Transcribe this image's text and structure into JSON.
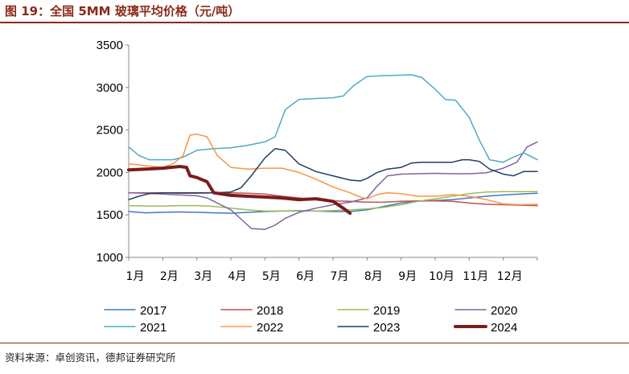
{
  "header": {
    "title": "图 19：全国 5MM 玻璃平均价格（元/吨）"
  },
  "footer": {
    "source": "资料来源：卓创资讯，德邦证券研究所"
  },
  "chart_data": {
    "type": "line",
    "title": "图 19：全国 5MM 玻璃平均价格（元/吨）",
    "xlabel": "",
    "ylabel": "",
    "ylim": [
      1000,
      3500
    ],
    "y_ticks": [
      1000,
      1500,
      2000,
      2500,
      3000,
      3500
    ],
    "x_ticks": [
      "1月",
      "2月",
      "3月",
      "4月",
      "5月",
      "6月",
      "7月",
      "8月",
      "9月",
      "10月",
      "11月",
      "12月"
    ],
    "xlim": [
      1,
      13
    ],
    "grid": false,
    "legend_position": "bottom",
    "series": [
      {
        "name": "2017",
        "color": "#3d7bbd",
        "width": 1.5,
        "points": [
          [
            1,
            1540
          ],
          [
            1.5,
            1525
          ],
          [
            2,
            1530
          ],
          [
            2.5,
            1535
          ],
          [
            3,
            1530
          ],
          [
            3.5,
            1525
          ],
          [
            4,
            1520
          ],
          [
            4.5,
            1530
          ],
          [
            5,
            1540
          ],
          [
            5.5,
            1545
          ],
          [
            6,
            1550
          ],
          [
            6.5,
            1545
          ],
          [
            7,
            1540
          ],
          [
            7.5,
            1540
          ],
          [
            8,
            1560
          ],
          [
            8.5,
            1600
          ],
          [
            9,
            1640
          ],
          [
            9.5,
            1660
          ],
          [
            10,
            1670
          ],
          [
            10.5,
            1680
          ],
          [
            11,
            1700
          ],
          [
            11.5,
            1720
          ],
          [
            12,
            1735
          ],
          [
            12.5,
            1745
          ],
          [
            13,
            1755
          ]
        ]
      },
      {
        "name": "2018",
        "color": "#c0504d",
        "width": 1.5,
        "points": [
          [
            1,
            1760
          ],
          [
            1.5,
            1760
          ],
          [
            2,
            1760
          ],
          [
            2.5,
            1755
          ],
          [
            3,
            1755
          ],
          [
            3.5,
            1760
          ],
          [
            4,
            1760
          ],
          [
            4.5,
            1755
          ],
          [
            5,
            1745
          ],
          [
            5.5,
            1720
          ],
          [
            6,
            1700
          ],
          [
            6.5,
            1680
          ],
          [
            7,
            1665
          ],
          [
            7.5,
            1660
          ],
          [
            8,
            1650
          ],
          [
            8.5,
            1650
          ],
          [
            9,
            1660
          ],
          [
            9.5,
            1665
          ],
          [
            10,
            1665
          ],
          [
            10.5,
            1660
          ],
          [
            11,
            1640
          ],
          [
            11.5,
            1625
          ],
          [
            12,
            1620
          ],
          [
            12.5,
            1615
          ],
          [
            13,
            1610
          ]
        ]
      },
      {
        "name": "2019",
        "color": "#9bbb59",
        "width": 1.5,
        "points": [
          [
            1,
            1610
          ],
          [
            1.5,
            1605
          ],
          [
            2,
            1605
          ],
          [
            2.5,
            1610
          ],
          [
            3,
            1610
          ],
          [
            3.5,
            1600
          ],
          [
            4,
            1580
          ],
          [
            4.5,
            1560
          ],
          [
            5,
            1545
          ],
          [
            5.5,
            1545
          ],
          [
            6,
            1545
          ],
          [
            6.5,
            1545
          ],
          [
            7,
            1550
          ],
          [
            7.5,
            1560
          ],
          [
            8,
            1570
          ],
          [
            8.5,
            1590
          ],
          [
            9,
            1620
          ],
          [
            9.5,
            1660
          ],
          [
            10,
            1690
          ],
          [
            10.5,
            1720
          ],
          [
            11,
            1750
          ],
          [
            11.5,
            1770
          ],
          [
            12,
            1775
          ],
          [
            12.5,
            1775
          ],
          [
            13,
            1775
          ]
        ]
      },
      {
        "name": "2020",
        "color": "#8064a2",
        "width": 1.5,
        "points": [
          [
            1,
            1760
          ],
          [
            1.5,
            1755
          ],
          [
            2,
            1745
          ],
          [
            2.5,
            1735
          ],
          [
            3,
            1725
          ],
          [
            3.3,
            1700
          ],
          [
            3.6,
            1640
          ],
          [
            4,
            1560
          ],
          [
            4.3,
            1450
          ],
          [
            4.6,
            1340
          ],
          [
            5,
            1330
          ],
          [
            5.3,
            1380
          ],
          [
            5.6,
            1460
          ],
          [
            6,
            1530
          ],
          [
            6.5,
            1580
          ],
          [
            7,
            1620
          ],
          [
            7.5,
            1650
          ],
          [
            8,
            1700
          ],
          [
            8.3,
            1840
          ],
          [
            8.6,
            1960
          ],
          [
            9,
            1980
          ],
          [
            9.5,
            1985
          ],
          [
            10,
            1990
          ],
          [
            10.5,
            1985
          ],
          [
            11,
            1985
          ],
          [
            11.5,
            1995
          ],
          [
            12,
            2050
          ],
          [
            12.4,
            2120
          ],
          [
            12.7,
            2300
          ],
          [
            13,
            2360
          ]
        ]
      },
      {
        "name": "2021",
        "color": "#4bacc6",
        "width": 1.5,
        "points": [
          [
            1,
            2300
          ],
          [
            1.3,
            2200
          ],
          [
            1.6,
            2150
          ],
          [
            2,
            2150
          ],
          [
            2.3,
            2150
          ],
          [
            2.6,
            2180
          ],
          [
            3,
            2260
          ],
          [
            3.5,
            2280
          ],
          [
            4,
            2290
          ],
          [
            4.5,
            2320
          ],
          [
            5,
            2360
          ],
          [
            5.3,
            2420
          ],
          [
            5.6,
            2740
          ],
          [
            6,
            2860
          ],
          [
            6.5,
            2870
          ],
          [
            7,
            2880
          ],
          [
            7.3,
            2900
          ],
          [
            7.6,
            3020
          ],
          [
            8,
            3130
          ],
          [
            8.5,
            3140
          ],
          [
            9,
            3145
          ],
          [
            9.3,
            3150
          ],
          [
            9.6,
            3120
          ],
          [
            10,
            2980
          ],
          [
            10.3,
            2860
          ],
          [
            10.6,
            2850
          ],
          [
            11,
            2650
          ],
          [
            11.3,
            2380
          ],
          [
            11.6,
            2150
          ],
          [
            12,
            2120
          ],
          [
            12.3,
            2180
          ],
          [
            12.6,
            2230
          ],
          [
            13,
            2150
          ]
        ]
      },
      {
        "name": "2022",
        "color": "#f79646",
        "width": 1.5,
        "points": [
          [
            1,
            2100
          ],
          [
            1.5,
            2080
          ],
          [
            2,
            2060
          ],
          [
            2.3,
            2100
          ],
          [
            2.6,
            2200
          ],
          [
            2.8,
            2440
          ],
          [
            3,
            2450
          ],
          [
            3.3,
            2420
          ],
          [
            3.6,
            2200
          ],
          [
            4,
            2060
          ],
          [
            4.5,
            2040
          ],
          [
            5,
            2050
          ],
          [
            5.5,
            2050
          ],
          [
            6,
            2000
          ],
          [
            6.5,
            1920
          ],
          [
            7,
            1830
          ],
          [
            7.5,
            1760
          ],
          [
            7.8,
            1710
          ],
          [
            8,
            1690
          ],
          [
            8.3,
            1740
          ],
          [
            8.6,
            1760
          ],
          [
            9,
            1750
          ],
          [
            9.5,
            1720
          ],
          [
            10,
            1720
          ],
          [
            10.5,
            1740
          ],
          [
            11,
            1720
          ],
          [
            11.5,
            1680
          ],
          [
            12,
            1630
          ],
          [
            12.5,
            1620
          ],
          [
            13,
            1625
          ]
        ]
      },
      {
        "name": "2023",
        "color": "#1f3f62",
        "width": 1.5,
        "points": [
          [
            1,
            1680
          ],
          [
            1.3,
            1720
          ],
          [
            1.6,
            1750
          ],
          [
            2,
            1760
          ],
          [
            2.5,
            1760
          ],
          [
            3,
            1760
          ],
          [
            3.5,
            1760
          ],
          [
            4,
            1770
          ],
          [
            4.3,
            1820
          ],
          [
            4.6,
            1960
          ],
          [
            5,
            2170
          ],
          [
            5.3,
            2280
          ],
          [
            5.6,
            2260
          ],
          [
            6,
            2100
          ],
          [
            6.5,
            2010
          ],
          [
            7,
            1960
          ],
          [
            7.5,
            1910
          ],
          [
            7.8,
            1900
          ],
          [
            8,
            1930
          ],
          [
            8.3,
            2000
          ],
          [
            8.6,
            2040
          ],
          [
            9,
            2060
          ],
          [
            9.3,
            2110
          ],
          [
            9.6,
            2120
          ],
          [
            10,
            2120
          ],
          [
            10.5,
            2120
          ],
          [
            10.8,
            2150
          ],
          [
            11,
            2150
          ],
          [
            11.3,
            2130
          ],
          [
            11.6,
            2040
          ],
          [
            12,
            1980
          ],
          [
            12.3,
            1960
          ],
          [
            12.6,
            2010
          ],
          [
            13,
            2010
          ]
        ]
      },
      {
        "name": "2024",
        "color": "#7b1c1c",
        "width": 4,
        "points": [
          [
            1,
            2030
          ],
          [
            1.5,
            2040
          ],
          [
            2,
            2050
          ],
          [
            2.5,
            2070
          ],
          [
            2.7,
            2060
          ],
          [
            2.8,
            1960
          ],
          [
            3,
            1940
          ],
          [
            3.3,
            1890
          ],
          [
            3.5,
            1760
          ],
          [
            4,
            1730
          ],
          [
            4.5,
            1720
          ],
          [
            5,
            1710
          ],
          [
            5.5,
            1700
          ],
          [
            6,
            1680
          ],
          [
            6.5,
            1690
          ],
          [
            7,
            1660
          ],
          [
            7.3,
            1580
          ],
          [
            7.5,
            1520
          ]
        ]
      }
    ]
  }
}
